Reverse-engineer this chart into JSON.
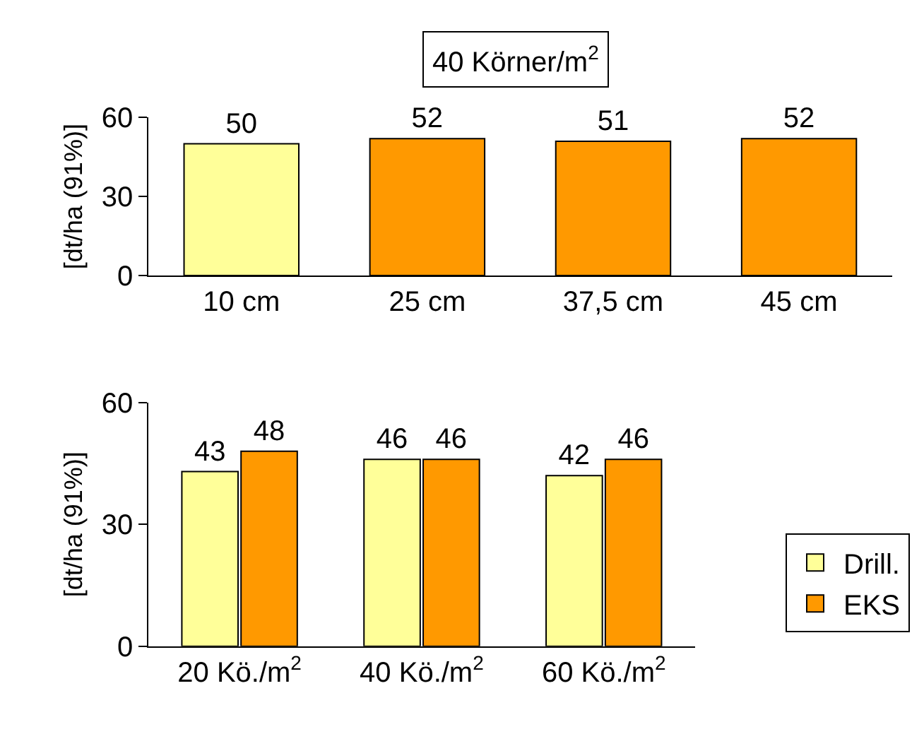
{
  "chart_data": [
    {
      "type": "bar",
      "ylabel": "[dt/ha (91%)]",
      "categories": [
        "10 cm",
        "25 cm",
        "37,5 cm",
        "45 cm"
      ],
      "values": [
        50,
        52,
        51,
        52
      ],
      "colors": [
        "#ffff99",
        "#ff9900",
        "#ff9900",
        "#ff9900"
      ],
      "ylim": [
        0,
        60
      ],
      "yticks": [
        0,
        30,
        60
      ],
      "data_labels": true,
      "annotations": [
        "40 Körner/m$^{2}$"
      ]
    },
    {
      "type": "bar",
      "ylabel": "[dt/ha (91%)]",
      "categories": [
        "20 Kö./m$^{2}$",
        "40 Kö./m$^{2}$",
        "60 Kö./m$^{2}$"
      ],
      "series": [
        {
          "name": "Drill.",
          "color": "#ffff99",
          "values": [
            43,
            46,
            42
          ]
        },
        {
          "name": "EKS",
          "color": "#ff9900",
          "values": [
            48,
            46,
            46
          ]
        }
      ],
      "ylim": [
        0,
        60
      ],
      "yticks": [
        0,
        30,
        60
      ],
      "data_labels": true,
      "legend": "right"
    }
  ]
}
